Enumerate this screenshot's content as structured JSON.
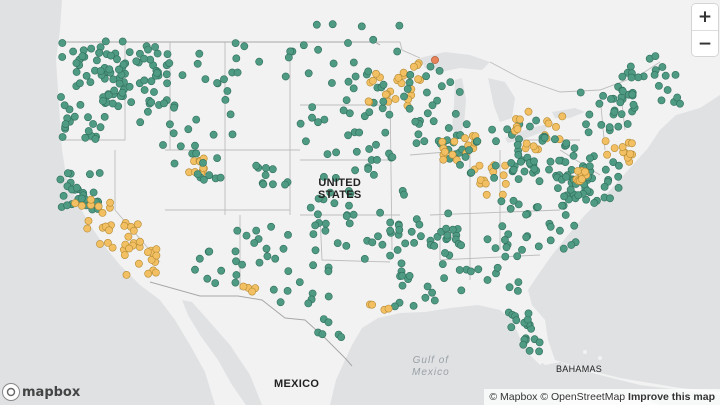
{
  "labels": {
    "country_us_line1": "UNITED",
    "country_us_line2": "STATES",
    "country_mexico": "MEXICO",
    "gulf_line1": "Gulf of",
    "gulf_line2": "Mexico",
    "bahamas": "BAHAMAS"
  },
  "controls": {
    "zoom_in": "+",
    "zoom_out": "−"
  },
  "logo": {
    "text": "mapbox"
  },
  "attribution": {
    "mapbox": "© Mapbox",
    "osm": "© OpenStreetMap",
    "improve": "Improve this map"
  },
  "colors": {
    "land": "#f2f2f2",
    "water": "#dfe1e3",
    "border": "#bdbdbd",
    "marker_green": "#4f9a83",
    "marker_yellow": "#f2c063",
    "marker_orange": "#e8835a"
  }
}
